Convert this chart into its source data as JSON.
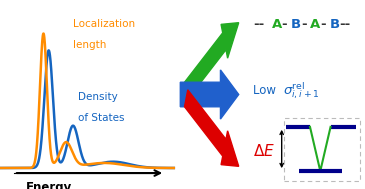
{
  "fig_width": 3.65,
  "fig_height": 1.89,
  "dpi": 100,
  "left_panel": {
    "orange_color": "#FF8C00",
    "blue_color": "#1565C0",
    "label_energy": "Energy",
    "label_localization": "Localization\nlength",
    "label_dos": "Density\nof States"
  },
  "arrows": {
    "green": "#22AA22",
    "blue": "#2060CC",
    "red": "#DD0000"
  },
  "right_panel": {
    "abab_color_A": "#22AA22",
    "abab_color_B": "#1565C0",
    "abab_dash_color": "#333333",
    "sigma_color": "#1565C0",
    "delta_e_color": "#DD0000",
    "energy_diagram_upper_color": "#00008B",
    "energy_diagram_lower_color": "#00008B",
    "energy_diagram_v_color": "#22AA22",
    "energy_diagram_box_color": "#BBBBBB"
  }
}
